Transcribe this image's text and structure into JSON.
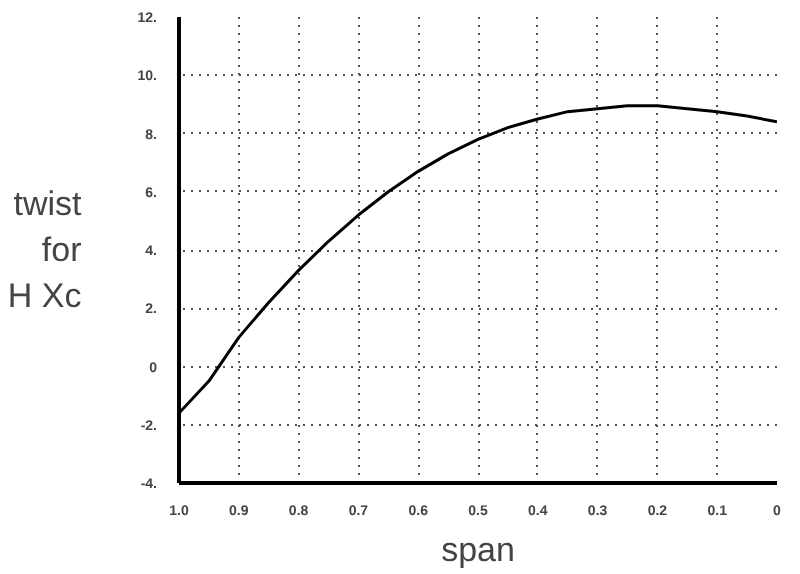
{
  "chart_data": {
    "type": "line",
    "xlabel": "span",
    "ylabel": "twist\nfor\nH Xc",
    "x": [
      1.0,
      0.95,
      0.9,
      0.85,
      0.8,
      0.75,
      0.7,
      0.65,
      0.6,
      0.55,
      0.5,
      0.45,
      0.4,
      0.35,
      0.3,
      0.25,
      0.2,
      0.15,
      0.1,
      0.05,
      0
    ],
    "series": [
      {
        "color": "#000000",
        "values": [
          -1.6,
          -0.5,
          1.0,
          2.2,
          3.3,
          4.3,
          5.2,
          6.0,
          6.7,
          7.3,
          7.8,
          8.2,
          8.5,
          8.75,
          8.85,
          8.95,
          8.95,
          8.85,
          8.75,
          8.6,
          8.4
        ]
      }
    ],
    "xlim": [
      1.0,
      0
    ],
    "xticks": [
      {
        "value": 1.0,
        "label": "1.0"
      },
      {
        "value": 0.9,
        "label": "0.9"
      },
      {
        "value": 0.8,
        "label": "0.8"
      },
      {
        "value": 0.7,
        "label": "0.7"
      },
      {
        "value": 0.6,
        "label": "0.6"
      },
      {
        "value": 0.5,
        "label": "0.5"
      },
      {
        "value": 0.4,
        "label": "0.4"
      },
      {
        "value": 0.3,
        "label": "0.3"
      },
      {
        "value": 0.2,
        "label": "0.2"
      },
      {
        "value": 0.1,
        "label": "0.1"
      },
      0
    ],
    "ylim": [
      -4,
      12
    ],
    "yticks": [
      {
        "value": -4,
        "label": "-4."
      },
      {
        "value": -2,
        "label": "-2."
      },
      0,
      {
        "value": 2,
        "label": "2."
      },
      {
        "value": 4,
        "label": "4."
      },
      {
        "value": 6,
        "label": "6."
      },
      {
        "value": 8,
        "label": "8."
      },
      {
        "value": 10,
        "label": "10."
      },
      {
        "value": 12,
        "label": "12."
      }
    ],
    "grid": true,
    "line_style": "solid",
    "marker": "none"
  }
}
